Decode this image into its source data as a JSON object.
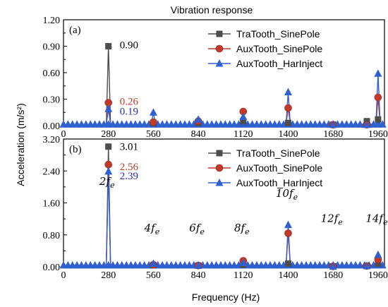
{
  "title": "Vibration response",
  "xlabel": "Frequency (Hz)",
  "ylabel": "Acceleration (m/s²)",
  "colors": {
    "TraTooth_SinePole": "#4d4d4d",
    "AuxTooth_SinePole": "#c0392b",
    "AuxTooth_HarInject": "#2f5fd1",
    "label_TraTooth": "#000000",
    "label_AuxSine": "#c0392b",
    "label_AuxHar": "#1f2fbf"
  },
  "chart_data": [
    {
      "type": "line",
      "panel": "(a)",
      "xlim": [
        0,
        2000
      ],
      "ylim": [
        0,
        1.2
      ],
      "xticks": [
        "0",
        "280",
        "560",
        "840",
        "1120",
        "1400",
        "1680",
        "1960"
      ],
      "yticks": [
        "0.00",
        "0.30",
        "0.60",
        "0.90",
        "1.20"
      ],
      "legend": "top-right",
      "x": [
        280,
        560,
        840,
        1120,
        1400,
        1680,
        1890,
        1960
      ],
      "series": [
        {
          "name": "TraTooth_SinePole",
          "marker": "square",
          "values": [
            0.9,
            0.03,
            0.03,
            0.05,
            0.03,
            0.01,
            0.05,
            0.07
          ]
        },
        {
          "name": "AuxTooth_SinePole",
          "marker": "circle",
          "values": [
            0.26,
            0.04,
            0.05,
            0.16,
            0.2,
            0.01,
            0.01,
            0.32
          ]
        },
        {
          "name": "AuxTooth_HarInject",
          "marker": "triangle",
          "values": [
            0.19,
            0.15,
            0.07,
            0.1,
            0.38,
            0.01,
            0.01,
            0.59
          ]
        }
      ],
      "labels": [
        {
          "text": "0.90",
          "series": "TraTooth_SinePole"
        },
        {
          "text": "0.26",
          "series": "AuxTooth_SinePole"
        },
        {
          "text": "0.19",
          "series": "AuxTooth_HarInject"
        }
      ]
    },
    {
      "type": "line",
      "panel": "(b)",
      "xlim": [
        0,
        2000
      ],
      "ylim": [
        0,
        3.2
      ],
      "xticks": [
        "0",
        "280",
        "560",
        "840",
        "1120",
        "1400",
        "1680",
        "1960"
      ],
      "yticks": [
        "0.00",
        "0.80",
        "1.60",
        "2.40",
        "3.20"
      ],
      "legend": "top-right",
      "x": [
        280,
        560,
        840,
        1120,
        1400,
        1680,
        1890,
        1960
      ],
      "series": [
        {
          "name": "TraTooth_SinePole",
          "marker": "square",
          "values": [
            3.01,
            0.04,
            0.03,
            0.05,
            0.08,
            0.01,
            0.02,
            0.08
          ]
        },
        {
          "name": "AuxTooth_SinePole",
          "marker": "circle",
          "values": [
            2.56,
            0.05,
            0.03,
            0.15,
            0.84,
            0.01,
            0.02,
            0.18
          ]
        },
        {
          "name": "AuxTooth_HarInject",
          "marker": "triangle",
          "values": [
            2.39,
            0.08,
            0.03,
            0.1,
            1.05,
            0.01,
            0.02,
            0.3
          ]
        }
      ],
      "labels": [
        {
          "text": "3.01",
          "series": "TraTooth_SinePole"
        },
        {
          "text": "2.56",
          "series": "AuxTooth_SinePole"
        },
        {
          "text": "2.39",
          "series": "AuxTooth_HarInject"
        }
      ],
      "harmonics": [
        {
          "coef": "2",
          "sub": "e",
          "x": 280,
          "y": 2.05
        },
        {
          "coef": "4",
          "sub": "e",
          "x": 560,
          "y": 0.88
        },
        {
          "coef": "6",
          "sub": "e",
          "x": 840,
          "y": 0.88
        },
        {
          "coef": "8",
          "sub": "e",
          "x": 1120,
          "y": 0.88
        },
        {
          "coef": "10",
          "sub": "e",
          "x": 1400,
          "y": 1.75
        },
        {
          "coef": "12",
          "sub": "e",
          "x": 1680,
          "y": 1.12
        },
        {
          "coef": "14",
          "sub": "e",
          "x": 1960,
          "y": 1.12
        }
      ]
    }
  ]
}
